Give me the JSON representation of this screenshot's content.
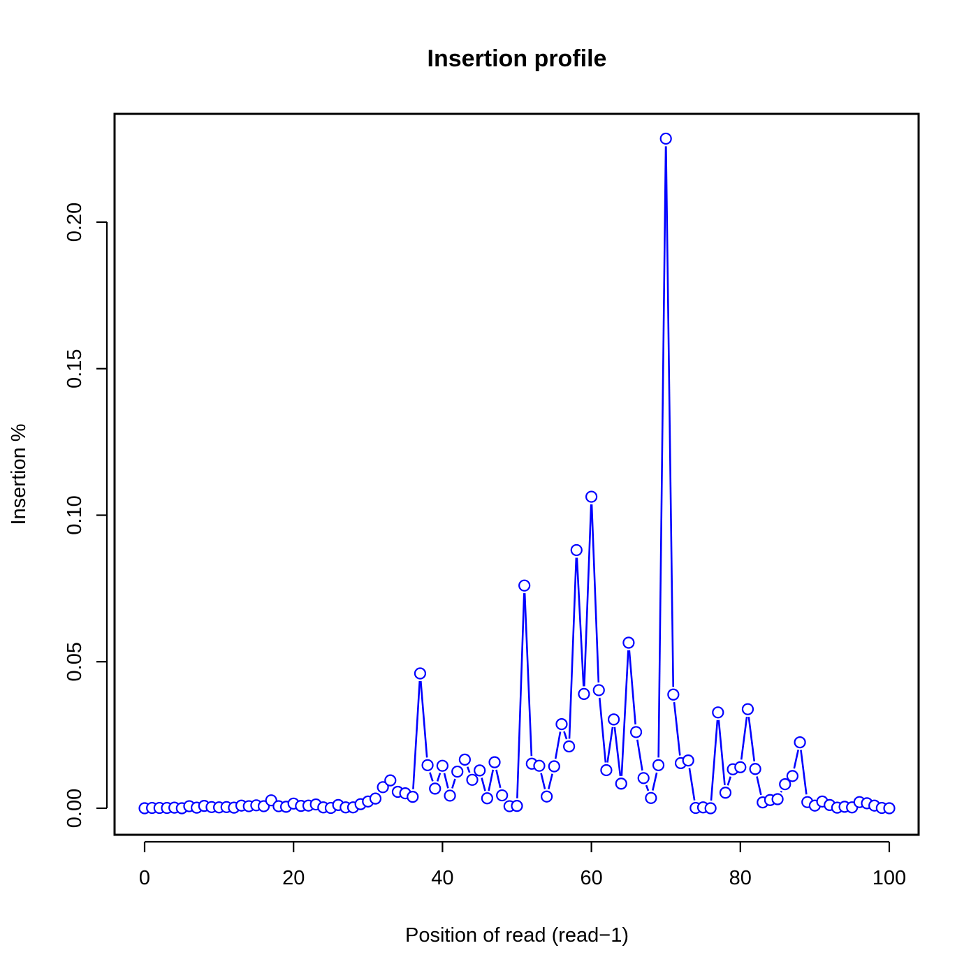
{
  "chart_data": {
    "type": "line",
    "title": "Insertion profile",
    "xlabel": "Position of read (read−1)",
    "ylabel": "Insertion %",
    "xlim": [
      0,
      100
    ],
    "ylim": [
      0,
      0.23
    ],
    "xticks": [
      0,
      20,
      40,
      60,
      80,
      100
    ],
    "xtick_labels": [
      "0",
      "20",
      "40",
      "60",
      "80",
      "100"
    ],
    "yticks": [
      0,
      0.05,
      0.1,
      0.15,
      0.2
    ],
    "ytick_labels": [
      "0.00",
      "0.05",
      "0.10",
      "0.15",
      "0.20"
    ],
    "grid": false,
    "marker": "open-circle",
    "color": "#0000ff",
    "series": [
      {
        "x": [
          0,
          1,
          2,
          3,
          4,
          5,
          6,
          7,
          8,
          9,
          10,
          11,
          12,
          13,
          14,
          15,
          16,
          17,
          18,
          19,
          20,
          21,
          22,
          23,
          24,
          25,
          26,
          27,
          28,
          29,
          30,
          31,
          32,
          33,
          34,
          35,
          36,
          37,
          38,
          39,
          40,
          41,
          42,
          43,
          44,
          45,
          46,
          47,
          48,
          49,
          50,
          51,
          52,
          53,
          54,
          55,
          56,
          57,
          58,
          59,
          60,
          61,
          62,
          63,
          64,
          65,
          66,
          67,
          68,
          69,
          70,
          71,
          72,
          73,
          74,
          75,
          76,
          77,
          78,
          79,
          80,
          81,
          82,
          83,
          84,
          85,
          86,
          87,
          88,
          89,
          90,
          91,
          92,
          93,
          94,
          95,
          96,
          97,
          98,
          99,
          100
        ],
        "values": [
          0.0,
          0.0001,
          0.0001,
          0.0001,
          0.0002,
          0.0,
          0.0007,
          0.0002,
          0.0008,
          0.0004,
          0.0003,
          0.0004,
          0.0002,
          0.0009,
          0.0007,
          0.001,
          0.0007,
          0.0027,
          0.0007,
          0.0005,
          0.0016,
          0.0008,
          0.0009,
          0.0013,
          0.0003,
          0.0001,
          0.0011,
          0.0003,
          0.0003,
          0.0014,
          0.0023,
          0.0033,
          0.0072,
          0.0095,
          0.0056,
          0.0051,
          0.0039,
          0.046,
          0.0147,
          0.0067,
          0.0145,
          0.0043,
          0.0125,
          0.0166,
          0.0097,
          0.0129,
          0.0034,
          0.0157,
          0.0044,
          0.0007,
          0.0008,
          0.076,
          0.0152,
          0.0145,
          0.004,
          0.0143,
          0.0287,
          0.0211,
          0.0881,
          0.039,
          0.1063,
          0.0403,
          0.013,
          0.0303,
          0.0084,
          0.0565,
          0.026,
          0.0103,
          0.0035,
          0.0147,
          0.2285,
          0.0388,
          0.0154,
          0.0163,
          0.0001,
          0.0003,
          0.0,
          0.0327,
          0.0053,
          0.0133,
          0.014,
          0.0338,
          0.0134,
          0.002,
          0.0028,
          0.0031,
          0.0082,
          0.011,
          0.0225,
          0.0021,
          0.0009,
          0.0023,
          0.0011,
          0.0002,
          0.0005,
          0.0003,
          0.0021,
          0.0017,
          0.0009,
          0.0001,
          0.0
        ]
      }
    ]
  }
}
